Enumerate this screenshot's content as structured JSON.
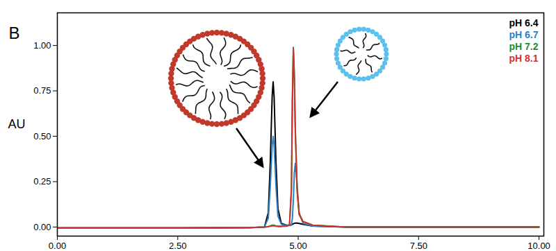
{
  "chart_data": {
    "type": "line",
    "title": "B",
    "y_label": "AU",
    "legend": "top-right",
    "grid": false,
    "xlim": [
      0,
      10.1
    ],
    "ylim": [
      -0.05,
      1.18
    ],
    "xticks": [
      {
        "value": 0,
        "label": "0.00"
      },
      {
        "value": 2.5,
        "label": "2.50"
      },
      {
        "value": 5,
        "label": "5.00"
      },
      {
        "value": 7.5,
        "label": "7.50"
      },
      {
        "value": 10,
        "label": "10.00"
      }
    ],
    "yticks": [
      {
        "value": 0,
        "label": "0.00"
      },
      {
        "value": 0.25,
        "label": "0.25"
      },
      {
        "value": 0.5,
        "label": "0.50"
      },
      {
        "value": 0.75,
        "label": "0.75"
      },
      {
        "value": 1,
        "label": "1.00"
      }
    ],
    "x": [
      0,
      2.5,
      4.0,
      4.3,
      4.38,
      4.42,
      4.46,
      4.48,
      4.5,
      4.54,
      4.58,
      4.65,
      4.75,
      4.82,
      4.86,
      4.88,
      4.9,
      4.92,
      4.94,
      4.98,
      5.02,
      5.1,
      5.3,
      6,
      8,
      10
    ],
    "series": [
      {
        "name": "pH 6.4",
        "color": "#000000",
        "values": [
          -0.005,
          -0.005,
          -0.003,
          0.0,
          0.08,
          0.35,
          0.72,
          0.8,
          0.72,
          0.35,
          0.1,
          0.02,
          0.01,
          0.01,
          0.012,
          0.015,
          0.018,
          0.02,
          0.022,
          0.022,
          0.02,
          0.015,
          0.005,
          0.0,
          0.0,
          0.0
        ]
      },
      {
        "name": "pH 6.7",
        "color": "#2a7fc9",
        "values": [
          -0.005,
          -0.005,
          -0.003,
          0.0,
          0.05,
          0.22,
          0.45,
          0.5,
          0.45,
          0.22,
          0.06,
          0.015,
          0.008,
          0.008,
          0.01,
          0.05,
          0.15,
          0.3,
          0.35,
          0.22,
          0.08,
          0.02,
          0.005,
          0.0,
          0.0,
          0.0
        ]
      },
      {
        "name": "pH 7.2",
        "color": "#1e8c3a",
        "values": [
          -0.005,
          -0.005,
          -0.003,
          0.0,
          0.003,
          0.006,
          0.01,
          0.01,
          0.01,
          0.006,
          0.004,
          0.004,
          0.005,
          0.01,
          0.2,
          0.7,
          0.99,
          0.85,
          0.55,
          0.2,
          0.07,
          0.03,
          0.01,
          0.0,
          0.0,
          0.0
        ]
      },
      {
        "name": "pH 8.1",
        "color": "#d0312d",
        "values": [
          -0.005,
          -0.005,
          -0.003,
          0.0,
          0.002,
          0.004,
          0.006,
          0.006,
          0.006,
          0.004,
          0.003,
          0.003,
          0.004,
          0.012,
          0.22,
          0.72,
          0.98,
          0.82,
          0.52,
          0.19,
          0.07,
          0.03,
          0.01,
          0.0,
          0.0,
          0.0
        ]
      }
    ]
  }
}
